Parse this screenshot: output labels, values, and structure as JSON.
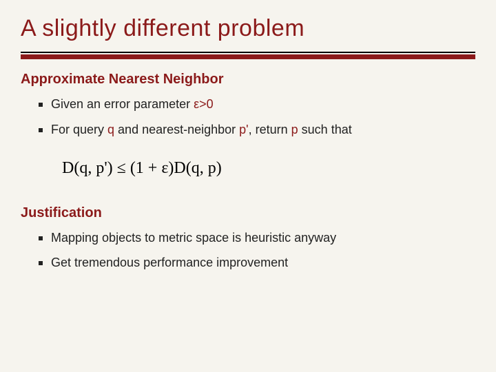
{
  "colors": {
    "background": "#f6f4ee",
    "accent": "#8b1a1a",
    "text": "#1a1a1a",
    "bullet": "#222222",
    "rule_thin": "#000000"
  },
  "typography": {
    "title_fontsize": 34,
    "section_fontsize": 20,
    "body_fontsize": 18,
    "formula_fontsize": 24,
    "title_font": "Verdana",
    "formula_font": "Times New Roman"
  },
  "title": "A slightly different problem",
  "sections": [
    {
      "heading": "Approximate Nearest Neighbor",
      "items": [
        {
          "prefix": "Given an error parameter ",
          "hl1": "ε>0",
          "mid": "",
          "hl2": "",
          "mid2": "",
          "hl3": "",
          "suffix": ""
        },
        {
          "prefix": "For query ",
          "hl1": "q",
          "mid": " and nearest-neighbor ",
          "hl2": "p'",
          "mid2": ", return ",
          "hl3": "p",
          "suffix": " such that"
        }
      ]
    },
    {
      "heading": "Justification",
      "items": [
        {
          "prefix": "Mapping objects to metric space is heuristic anyway",
          "hl1": "",
          "mid": "",
          "hl2": "",
          "mid2": "",
          "hl3": "",
          "suffix": ""
        },
        {
          "prefix": "Get tremendous performance improvement",
          "hl1": "",
          "mid": "",
          "hl2": "",
          "mid2": "",
          "hl3": "",
          "suffix": ""
        }
      ]
    }
  ],
  "formula": "D(q, p') ≤ (1 + ε)D(q, p)"
}
